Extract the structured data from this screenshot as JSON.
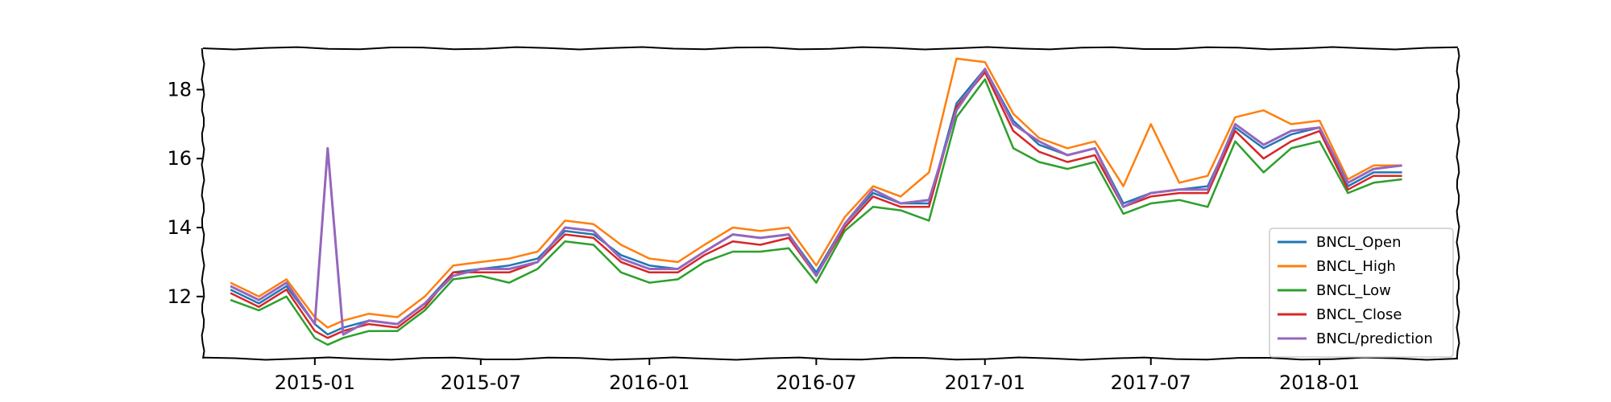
{
  "chart_data": {
    "type": "line",
    "title": "",
    "xlabel": "",
    "ylabel": "",
    "x_axis": "date",
    "xlim": [
      "2014-09-01",
      "2018-06-01"
    ],
    "ylim": [
      10.2,
      19.2
    ],
    "x_ticks": [
      "2015-01",
      "2015-07",
      "2016-01",
      "2016-07",
      "2017-01",
      "2017-07",
      "2018-01"
    ],
    "y_ticks": [
      12,
      14,
      16,
      18
    ],
    "grid": false,
    "legend_placement": "lower-right",
    "colors": {
      "BNCL_Open": "#1f77b4",
      "BNCL_High": "#ff7f0e",
      "BNCL_Low": "#2ca02c",
      "BNCL_Close": "#d62728",
      "BNCL/prediction": "#9467bd"
    },
    "legend": [
      "BNCL_Open",
      "BNCL_High",
      "BNCL_Low",
      "BNCL_Close",
      "BNCL/prediction"
    ],
    "x": [
      "2014-10-01",
      "2014-11-01",
      "2014-12-01",
      "2015-01-01",
      "2015-01-15",
      "2015-02-01",
      "2015-03-01",
      "2015-04-01",
      "2015-05-01",
      "2015-06-01",
      "2015-07-01",
      "2015-08-01",
      "2015-09-01",
      "2015-10-01",
      "2015-11-01",
      "2015-12-01",
      "2016-01-01",
      "2016-02-01",
      "2016-03-01",
      "2016-04-01",
      "2016-05-01",
      "2016-06-01",
      "2016-07-01",
      "2016-08-01",
      "2016-09-01",
      "2016-10-01",
      "2016-11-01",
      "2016-12-01",
      "2017-01-01",
      "2017-02-01",
      "2017-03-01",
      "2017-04-01",
      "2017-05-01",
      "2017-06-01",
      "2017-07-01",
      "2017-08-01",
      "2017-09-01",
      "2017-10-01",
      "2017-11-01",
      "2017-12-01",
      "2018-01-01",
      "2018-02-01",
      "2018-03-01",
      "2018-04-01"
    ],
    "series": [
      {
        "name": "BNCL_Open",
        "values": [
          12.2,
          11.8,
          12.3,
          11.2,
          10.9,
          11.1,
          11.3,
          11.2,
          11.8,
          12.7,
          12.8,
          12.9,
          13.1,
          13.9,
          13.8,
          13.2,
          12.9,
          12.8,
          13.3,
          13.8,
          13.7,
          13.8,
          12.7,
          14.1,
          15.0,
          14.7,
          14.7,
          17.6,
          18.6,
          17.1,
          16.4,
          16.1,
          16.3,
          14.7,
          15.0,
          15.1,
          15.2,
          16.9,
          16.3,
          16.7,
          16.9,
          15.2,
          15.6,
          15.6
        ]
      },
      {
        "name": "BNCL_High",
        "values": [
          12.4,
          12.0,
          12.5,
          11.4,
          11.1,
          11.3,
          11.5,
          11.4,
          12.0,
          12.9,
          13.0,
          13.1,
          13.3,
          14.2,
          14.1,
          13.5,
          13.1,
          13.0,
          13.5,
          14.0,
          13.9,
          14.0,
          12.9,
          14.3,
          15.2,
          14.9,
          15.6,
          18.9,
          18.8,
          17.3,
          16.6,
          16.3,
          16.5,
          15.2,
          17.0,
          15.3,
          15.5,
          17.2,
          17.4,
          17.0,
          17.1,
          15.4,
          15.8,
          15.8
        ]
      },
      {
        "name": "BNCL_Low",
        "values": [
          11.9,
          11.6,
          12.0,
          10.8,
          10.6,
          10.8,
          11.0,
          11.0,
          11.6,
          12.5,
          12.6,
          12.4,
          12.8,
          13.6,
          13.5,
          12.7,
          12.4,
          12.5,
          13.0,
          13.3,
          13.3,
          13.4,
          12.4,
          13.9,
          14.6,
          14.5,
          14.2,
          17.2,
          18.3,
          16.3,
          15.9,
          15.7,
          15.9,
          14.4,
          14.7,
          14.8,
          14.6,
          16.5,
          15.6,
          16.3,
          16.5,
          15.0,
          15.3,
          15.4
        ]
      },
      {
        "name": "BNCL_Close",
        "values": [
          12.1,
          11.7,
          12.2,
          11.0,
          10.8,
          11.0,
          11.2,
          11.1,
          11.7,
          12.7,
          12.7,
          12.7,
          13.0,
          13.8,
          13.7,
          13.0,
          12.7,
          12.7,
          13.2,
          13.6,
          13.5,
          13.7,
          12.6,
          14.0,
          14.9,
          14.6,
          14.6,
          17.5,
          18.5,
          16.8,
          16.2,
          15.9,
          16.1,
          14.6,
          14.9,
          15.0,
          15.0,
          16.8,
          16.0,
          16.5,
          16.8,
          15.1,
          15.5,
          15.5
        ]
      },
      {
        "name": "BNCL/prediction",
        "values": [
          12.3,
          11.9,
          12.4,
          11.2,
          16.3,
          10.9,
          11.3,
          11.2,
          11.8,
          12.6,
          12.8,
          12.8,
          13.0,
          14.0,
          13.9,
          13.1,
          12.8,
          12.8,
          13.3,
          13.8,
          13.7,
          13.8,
          12.6,
          14.1,
          15.1,
          14.7,
          14.8,
          17.4,
          18.6,
          17.0,
          16.5,
          16.1,
          16.3,
          14.6,
          15.0,
          15.1,
          15.1,
          17.0,
          16.4,
          16.8,
          16.9,
          15.3,
          15.7,
          15.8
        ]
      }
    ]
  }
}
